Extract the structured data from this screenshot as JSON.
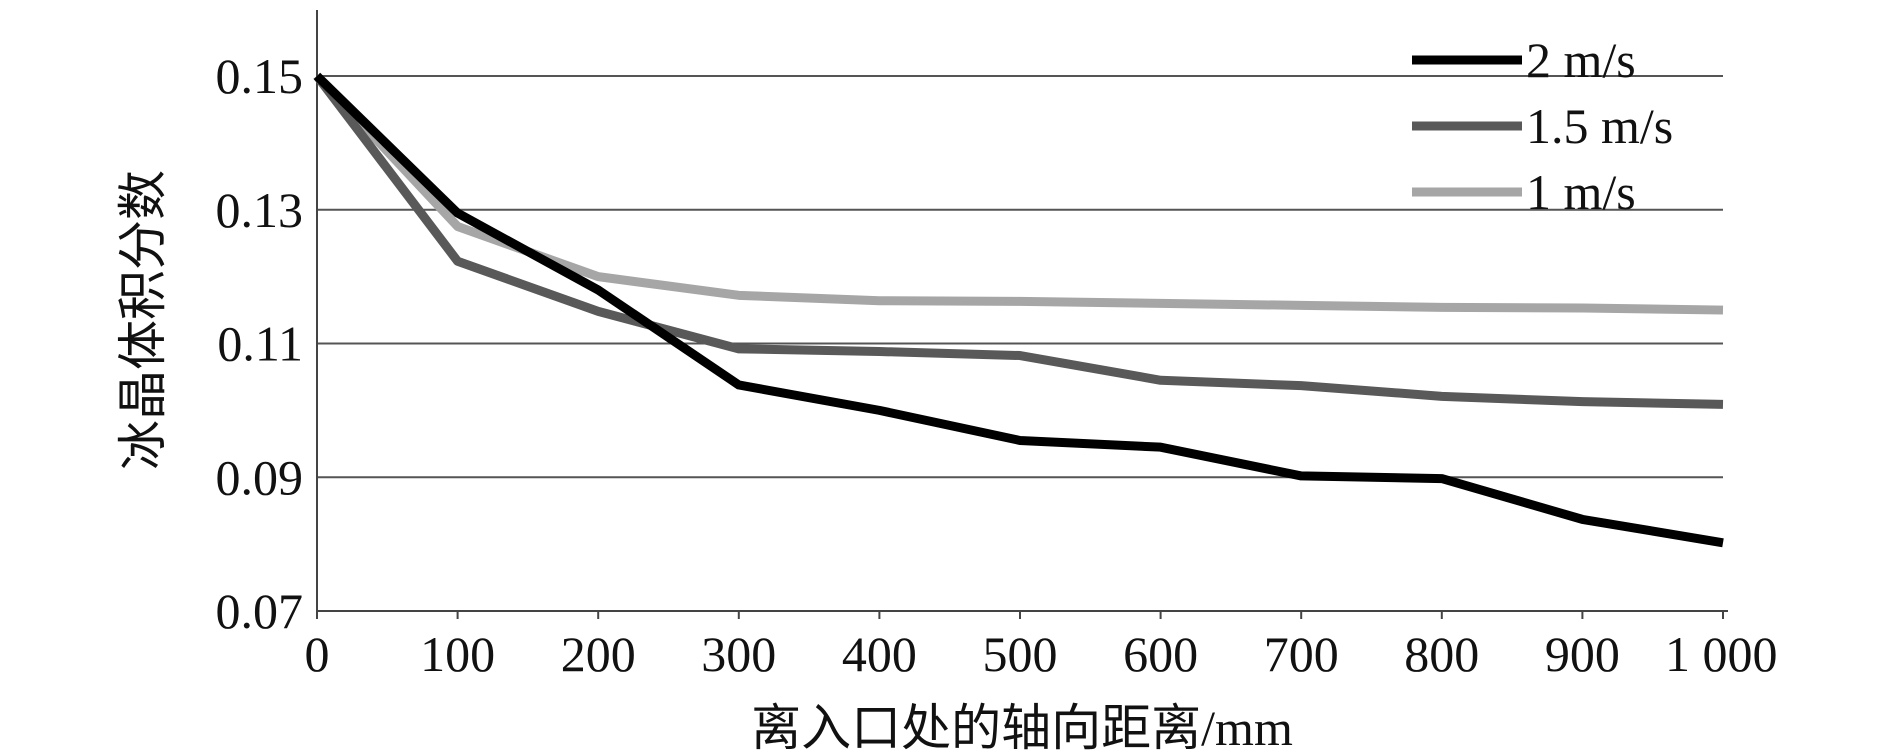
{
  "chart_data": {
    "type": "line",
    "title": "",
    "xlabel": "离入口处的轴向距离/mm",
    "ylabel": "冰晶体积分数",
    "x": [
      0,
      100,
      200,
      300,
      400,
      500,
      600,
      700,
      800,
      900,
      1000
    ],
    "x_tick_labels": [
      "0",
      "100",
      "200",
      "300",
      "400",
      "500",
      "600",
      "700",
      "800",
      "900",
      "1 000"
    ],
    "xlim": [
      0,
      1000
    ],
    "y_ticks": [
      0.07,
      0.09,
      0.11,
      0.13,
      0.15
    ],
    "y_tick_labels": [
      "0.07",
      "0.09",
      "0.11",
      "0.13",
      "0.15"
    ],
    "ylim": [
      0.07,
      0.16
    ],
    "grid": "horizontal",
    "legend_position": "top-right",
    "series": [
      {
        "name": "2 m/s",
        "color": "#000000",
        "values": [
          0.15,
          0.1295,
          0.118,
          0.1038,
          0.1,
          0.0955,
          0.0945,
          0.0902,
          0.0898,
          0.0837,
          0.0802
        ]
      },
      {
        "name": "1.5 m/s",
        "color": "#595959",
        "values": [
          0.15,
          0.1223,
          0.1148,
          0.1092,
          0.1088,
          0.1082,
          0.1045,
          0.1037,
          0.1021,
          0.1013,
          0.1009
        ]
      },
      {
        "name": "1 m/s",
        "color": "#a6a6a6",
        "values": [
          0.15,
          0.1275,
          0.12,
          0.1172,
          0.1164,
          0.1163,
          0.116,
          0.1157,
          0.1154,
          0.1153,
          0.115
        ]
      }
    ]
  }
}
